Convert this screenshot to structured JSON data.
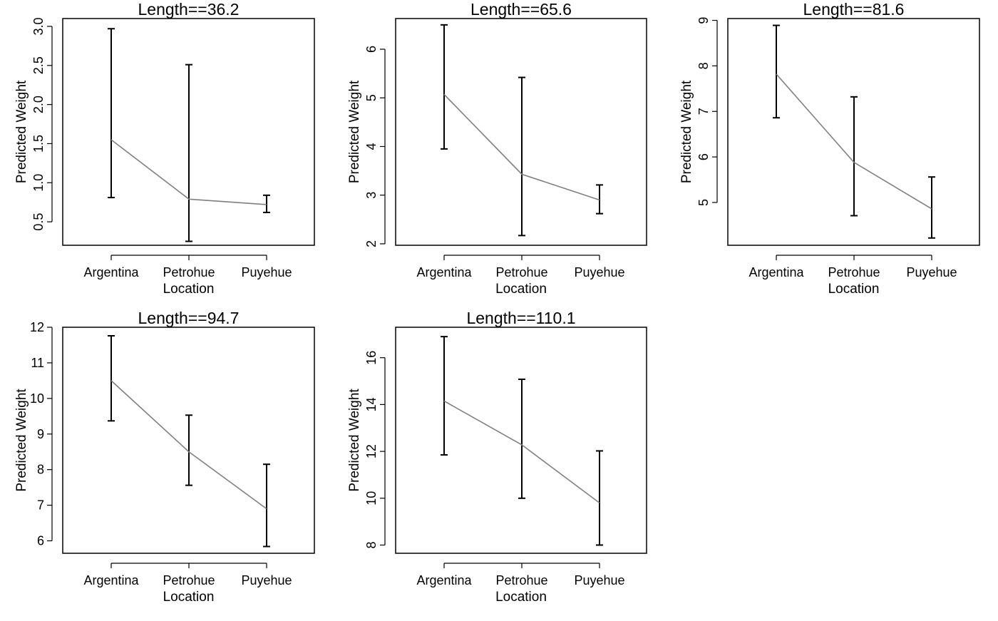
{
  "colors": {
    "line": "#808080",
    "errorbar": "#000000",
    "frame": "#000000",
    "background": "#ffffff"
  },
  "chart_data": [
    {
      "type": "line",
      "title": "Length==36.2",
      "xlabel": "Location",
      "ylabel": "Predicted Weight",
      "categories": [
        "Argentina",
        "Petrohue",
        "Puyehue"
      ],
      "values": [
        1.55,
        0.79,
        0.72
      ],
      "lower": [
        0.81,
        0.25,
        0.62
      ],
      "upper": [
        2.97,
        2.51,
        0.84
      ],
      "ylim": [
        0.2,
        3.1
      ],
      "yticks": [
        "0.5",
        "1.0",
        "1.5",
        "2.0",
        "2.5",
        "3.0"
      ],
      "ytick_rotated": true,
      "grid": false
    },
    {
      "type": "line",
      "title": "Length==65.6",
      "xlabel": "Location",
      "ylabel": "Predicted Weight",
      "categories": [
        "Argentina",
        "Petrohue",
        "Puyehue"
      ],
      "values": [
        5.07,
        3.43,
        2.9
      ],
      "lower": [
        3.95,
        2.17,
        2.62
      ],
      "upper": [
        6.5,
        5.42,
        3.21
      ],
      "ylim": [
        1.97,
        6.63
      ],
      "yticks": [
        "2",
        "3",
        "4",
        "5",
        "6"
      ],
      "ytick_rotated": true,
      "grid": false
    },
    {
      "type": "line",
      "title": "Length==81.6",
      "xlabel": "Location",
      "ylabel": "Predicted Weight",
      "categories": [
        "Argentina",
        "Petrohue",
        "Puyehue"
      ],
      "values": [
        7.82,
        5.88,
        4.86
      ],
      "lower": [
        6.86,
        4.71,
        4.22
      ],
      "upper": [
        8.89,
        7.32,
        5.56
      ],
      "ylim": [
        4.06,
        9.04
      ],
      "yticks": [
        "5",
        "6",
        "7",
        "8",
        "9"
      ],
      "ytick_rotated": true,
      "grid": false
    },
    {
      "type": "line",
      "title": "Length==94.7",
      "xlabel": "Location",
      "ylabel": "Predicted Weight",
      "categories": [
        "Argentina",
        "Petrohue",
        "Puyehue"
      ],
      "values": [
        10.5,
        8.5,
        6.9
      ],
      "lower": [
        9.37,
        7.56,
        5.84
      ],
      "upper": [
        11.76,
        9.53,
        8.15
      ],
      "ylim": [
        5.65,
        12.0
      ],
      "yticks": [
        "6",
        "7",
        "8",
        "9",
        "10",
        "11",
        "12"
      ],
      "ytick_rotated": false,
      "grid": false
    },
    {
      "type": "line",
      "title": "Length==110.1",
      "xlabel": "Location",
      "ylabel": "Predicted Weight",
      "categories": [
        "Argentina",
        "Petrohue",
        "Puyehue"
      ],
      "values": [
        14.15,
        12.28,
        9.8
      ],
      "lower": [
        11.85,
        10.0,
        8.0
      ],
      "upper": [
        16.9,
        15.08,
        12.02
      ],
      "ylim": [
        7.65,
        17.3
      ],
      "yticks": [
        "8",
        "10",
        "12",
        "14",
        "16"
      ],
      "ytick_rotated": true,
      "grid": false
    }
  ]
}
